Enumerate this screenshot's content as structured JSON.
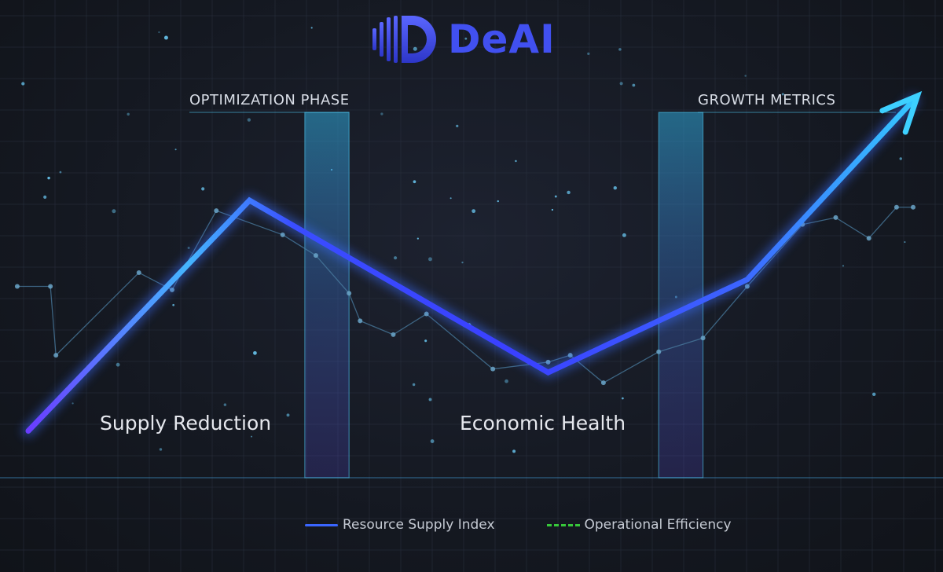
{
  "brand": {
    "name": "DeAI",
    "color": "#4150f0",
    "logo_icon": "deai-d-logo-icon"
  },
  "phases": [
    {
      "label": "OPTIMIZATION PHASE"
    },
    {
      "label": "GROWTH METRICS"
    }
  ],
  "regions": [
    {
      "label": "Supply Reduction"
    },
    {
      "label": "Economic Health"
    }
  ],
  "chart_data": {
    "type": "line",
    "title": "",
    "xlabel": "",
    "ylabel": "",
    "grid": true,
    "legend_placement": "bottom-center",
    "x": [
      0,
      1,
      2,
      3,
      4,
      5,
      6,
      7,
      8
    ],
    "xlim": [
      0,
      8
    ],
    "ylim": [
      0,
      10
    ],
    "series": [
      {
        "name": "Resource Supply Index",
        "color": "#3a5cff",
        "style": "solid-glow-arrow",
        "points": [
          [
            0,
            0.4
          ],
          [
            2.0,
            7.1
          ],
          [
            4.7,
            2.1
          ],
          [
            6.5,
            4.8
          ],
          [
            8.0,
            10.0
          ]
        ]
      },
      {
        "name": "Operational Efficiency",
        "color": "#37c83a",
        "style": "dashed",
        "points": []
      }
    ],
    "background_trace": {
      "color": "#4a7ca0",
      "points": [
        [
          -0.1,
          4.6
        ],
        [
          0.2,
          4.6
        ],
        [
          0.25,
          2.6
        ],
        [
          1.0,
          5.0
        ],
        [
          1.3,
          4.5
        ],
        [
          1.7,
          6.8
        ],
        [
          2.3,
          6.1
        ],
        [
          2.6,
          5.5
        ],
        [
          2.9,
          4.4
        ],
        [
          3.0,
          3.6
        ],
        [
          3.3,
          3.2
        ],
        [
          3.6,
          3.8
        ],
        [
          4.2,
          2.2
        ],
        [
          4.7,
          2.4
        ],
        [
          4.9,
          2.6
        ],
        [
          5.2,
          1.8
        ],
        [
          5.7,
          2.7
        ],
        [
          6.1,
          3.1
        ],
        [
          6.5,
          4.6
        ],
        [
          7.0,
          6.4
        ],
        [
          7.3,
          6.6
        ],
        [
          7.6,
          6.0
        ],
        [
          7.85,
          6.9
        ],
        [
          8.0,
          6.9
        ]
      ]
    },
    "highlight_bands": [
      {
        "label_index": 0,
        "x_range": [
          2.5,
          2.9
        ]
      },
      {
        "label_index": 1,
        "x_range": [
          5.7,
          6.1
        ]
      }
    ]
  },
  "legend": [
    {
      "label": "Resource Supply Index",
      "color": "#3a66ff",
      "style": "solid"
    },
    {
      "label": "Operational Efficiency",
      "color": "#37c83a",
      "style": "dashed"
    }
  ]
}
